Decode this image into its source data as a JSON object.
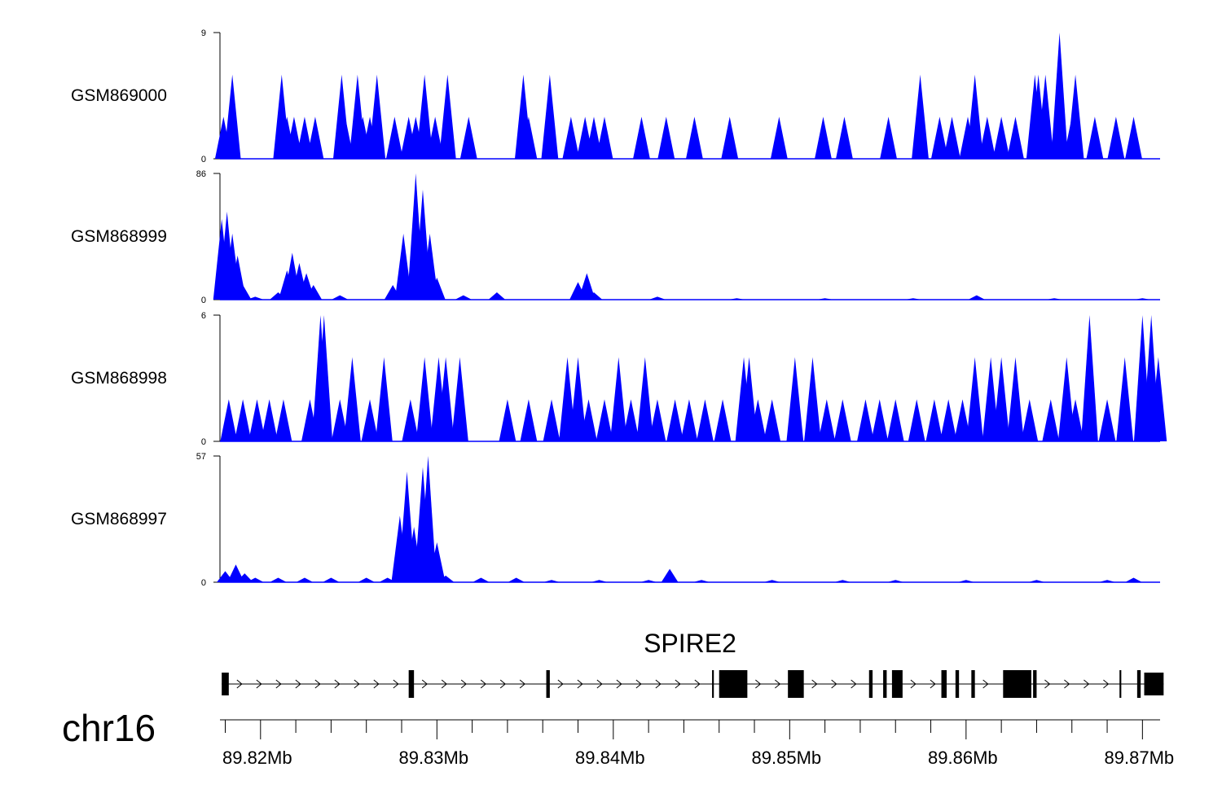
{
  "chart_data": {
    "type": "area",
    "chromosome": "chr16",
    "x_range_mb": [
      89.8177,
      89.871
    ],
    "x_ticks": [
      {
        "value": 89.82,
        "label": "89.82Mb"
      },
      {
        "value": 89.83,
        "label": "89.83Mb"
      },
      {
        "value": 89.84,
        "label": "89.84Mb"
      },
      {
        "value": 89.85,
        "label": "89.85Mb"
      },
      {
        "value": 89.86,
        "label": "89.86Mb"
      },
      {
        "value": 89.87,
        "label": "89.87Mb"
      }
    ],
    "fill_color": "#0000ff",
    "tracks": [
      {
        "name": "GSM869000",
        "ymin_label": "0",
        "ymax_label": "9",
        "ylim": [
          0,
          9
        ],
        "peaks": [
          [
            89.8179,
            3
          ],
          [
            89.8184,
            6
          ],
          [
            89.8212,
            6
          ],
          [
            89.8215,
            3
          ],
          [
            89.8219,
            3
          ],
          [
            89.8225,
            3
          ],
          [
            89.8231,
            3
          ],
          [
            89.8246,
            6
          ],
          [
            89.8248,
            3
          ],
          [
            89.8255,
            6
          ],
          [
            89.8258,
            3
          ],
          [
            89.8262,
            3
          ],
          [
            89.8266,
            6
          ],
          [
            89.8276,
            3
          ],
          [
            89.8284,
            3
          ],
          [
            89.8288,
            3
          ],
          [
            89.8293,
            6
          ],
          [
            89.8299,
            3
          ],
          [
            89.8306,
            6
          ],
          [
            89.8318,
            3
          ],
          [
            89.8349,
            6
          ],
          [
            89.8352,
            3
          ],
          [
            89.8364,
            6
          ],
          [
            89.8376,
            3
          ],
          [
            89.8384,
            3
          ],
          [
            89.8389,
            3
          ],
          [
            89.8395,
            3
          ],
          [
            89.8416,
            3
          ],
          [
            89.843,
            3
          ],
          [
            89.8446,
            3
          ],
          [
            89.8466,
            3
          ],
          [
            89.8494,
            3
          ],
          [
            89.8519,
            3
          ],
          [
            89.8531,
            3
          ],
          [
            89.8556,
            3
          ],
          [
            89.8574,
            6
          ],
          [
            89.8585,
            3
          ],
          [
            89.8592,
            3
          ],
          [
            89.8601,
            3
          ],
          [
            89.8605,
            6
          ],
          [
            89.8612,
            3
          ],
          [
            89.862,
            3
          ],
          [
            89.8628,
            3
          ],
          [
            89.8639,
            6
          ],
          [
            89.8641,
            6
          ],
          [
            89.8643,
            3
          ],
          [
            89.8645,
            6
          ],
          [
            89.8653,
            9
          ],
          [
            89.866,
            3
          ],
          [
            89.8662,
            6
          ],
          [
            89.8673,
            3
          ],
          [
            89.8685,
            3
          ],
          [
            89.8695,
            3
          ]
        ]
      },
      {
        "name": "GSM868999",
        "ymin_label": "0",
        "ymax_label": "86",
        "ylim": [
          0,
          86
        ],
        "peaks": [
          [
            89.8178,
            55
          ],
          [
            89.8181,
            60
          ],
          [
            89.8184,
            45
          ],
          [
            89.8187,
            30
          ],
          [
            89.819,
            10
          ],
          [
            89.8197,
            2
          ],
          [
            89.821,
            5
          ],
          [
            89.8215,
            20
          ],
          [
            89.8218,
            32
          ],
          [
            89.8222,
            25
          ],
          [
            89.8226,
            18
          ],
          [
            89.823,
            10
          ],
          [
            89.8245,
            3
          ],
          [
            89.8275,
            10
          ],
          [
            89.8281,
            45
          ],
          [
            89.8288,
            86
          ],
          [
            89.8292,
            75
          ],
          [
            89.8296,
            45
          ],
          [
            89.83,
            15
          ],
          [
            89.8315,
            3
          ],
          [
            89.8334,
            5
          ],
          [
            89.838,
            12
          ],
          [
            89.8385,
            18
          ],
          [
            89.8389,
            5
          ],
          [
            89.8425,
            2
          ],
          [
            89.847,
            1
          ],
          [
            89.852,
            1
          ],
          [
            89.857,
            1
          ],
          [
            89.8606,
            3
          ],
          [
            89.865,
            1
          ],
          [
            89.87,
            1
          ]
        ]
      },
      {
        "name": "GSM868998",
        "ymin_label": "0",
        "ymax_label": "6",
        "ylim": [
          0,
          6
        ],
        "peaks": [
          [
            89.8182,
            2
          ],
          [
            89.819,
            2
          ],
          [
            89.8198,
            2
          ],
          [
            89.8205,
            2
          ],
          [
            89.8213,
            2
          ],
          [
            89.8228,
            2
          ],
          [
            89.8234,
            6
          ],
          [
            89.8236,
            6
          ],
          [
            89.8245,
            2
          ],
          [
            89.8252,
            4
          ],
          [
            89.8262,
            2
          ],
          [
            89.827,
            4
          ],
          [
            89.8285,
            2
          ],
          [
            89.8293,
            4
          ],
          [
            89.8301,
            4
          ],
          [
            89.8305,
            4
          ],
          [
            89.8313,
            4
          ],
          [
            89.834,
            2
          ],
          [
            89.8352,
            2
          ],
          [
            89.8365,
            2
          ],
          [
            89.8374,
            4
          ],
          [
            89.838,
            4
          ],
          [
            89.8386,
            2
          ],
          [
            89.8395,
            2
          ],
          [
            89.8403,
            4
          ],
          [
            89.841,
            2
          ],
          [
            89.8418,
            4
          ],
          [
            89.8425,
            2
          ],
          [
            89.8435,
            2
          ],
          [
            89.8443,
            2
          ],
          [
            89.8452,
            2
          ],
          [
            89.8462,
            2
          ],
          [
            89.8474,
            4
          ],
          [
            89.8477,
            4
          ],
          [
            89.8482,
            2
          ],
          [
            89.849,
            2
          ],
          [
            89.8503,
            4
          ],
          [
            89.8513,
            4
          ],
          [
            89.8521,
            2
          ],
          [
            89.853,
            2
          ],
          [
            89.8543,
            2
          ],
          [
            89.8551,
            2
          ],
          [
            89.856,
            2
          ],
          [
            89.8572,
            2
          ],
          [
            89.8582,
            2
          ],
          [
            89.859,
            2
          ],
          [
            89.8598,
            2
          ],
          [
            89.8605,
            4
          ],
          [
            89.8614,
            4
          ],
          [
            89.862,
            4
          ],
          [
            89.8628,
            4
          ],
          [
            89.8636,
            2
          ],
          [
            89.8648,
            2
          ],
          [
            89.8657,
            4
          ],
          [
            89.8662,
            2
          ],
          [
            89.867,
            6
          ],
          [
            89.868,
            2
          ],
          [
            89.869,
            4
          ],
          [
            89.87,
            6
          ],
          [
            89.8705,
            6
          ],
          [
            89.8709,
            4
          ]
        ]
      },
      {
        "name": "GSM868997",
        "ymin_label": "0",
        "ymax_label": "57",
        "ylim": [
          0,
          57
        ],
        "peaks": [
          [
            89.818,
            5
          ],
          [
            89.8186,
            8
          ],
          [
            89.8191,
            4
          ],
          [
            89.8197,
            2
          ],
          [
            89.821,
            2
          ],
          [
            89.8225,
            2
          ],
          [
            89.824,
            2
          ],
          [
            89.826,
            2
          ],
          [
            89.8272,
            2
          ],
          [
            89.8279,
            30
          ],
          [
            89.8283,
            50
          ],
          [
            89.8287,
            25
          ],
          [
            89.8292,
            52
          ],
          [
            89.8295,
            57
          ],
          [
            89.83,
            18
          ],
          [
            89.8305,
            3
          ],
          [
            89.8325,
            2
          ],
          [
            89.8345,
            2
          ],
          [
            89.8365,
            1
          ],
          [
            89.8392,
            1
          ],
          [
            89.842,
            1
          ],
          [
            89.8432,
            6
          ],
          [
            89.845,
            1
          ],
          [
            89.849,
            1
          ],
          [
            89.853,
            1
          ],
          [
            89.856,
            1
          ],
          [
            89.86,
            1
          ],
          [
            89.864,
            1
          ],
          [
            89.868,
            1
          ],
          [
            89.8695,
            2
          ]
        ]
      }
    ],
    "gene": {
      "name": "SPIRE2",
      "strand": "+",
      "exons": [
        [
          89.8178,
          89.8182,
          "utr"
        ],
        [
          89.8284,
          89.8287,
          "cds"
        ],
        [
          89.8362,
          89.8364,
          "cds"
        ],
        [
          89.8456,
          89.8457,
          "cds"
        ],
        [
          89.846,
          89.8476,
          "cds"
        ],
        [
          89.8499,
          89.8508,
          "cds"
        ],
        [
          89.8545,
          89.8547,
          "cds"
        ],
        [
          89.8553,
          89.8555,
          "cds"
        ],
        [
          89.8558,
          89.8564,
          "cds"
        ],
        [
          89.8586,
          89.8589,
          "cds"
        ],
        [
          89.8594,
          89.8596,
          "cds"
        ],
        [
          89.8603,
          89.8605,
          "cds"
        ],
        [
          89.8621,
          89.8637,
          "cds"
        ],
        [
          89.8638,
          89.864,
          "cds"
        ],
        [
          89.8687,
          89.8688,
          "cds"
        ],
        [
          89.8697,
          89.8699,
          "cds"
        ],
        [
          89.8701,
          89.8712,
          "utr"
        ]
      ]
    }
  }
}
